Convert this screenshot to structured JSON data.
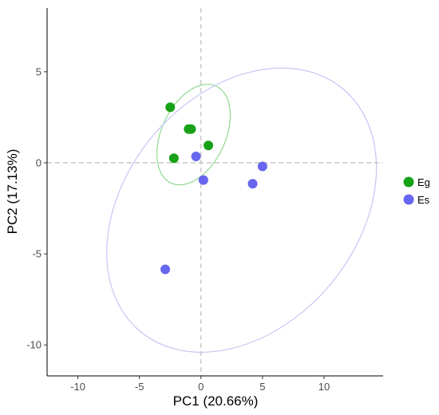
{
  "chart_data": {
    "type": "scatter",
    "xlabel": "PC1 (20.66%)",
    "ylabel": "PC2 (17.13%)",
    "xlim": [
      -12.5,
      14.8
    ],
    "ylim": [
      -11.7,
      8.5
    ],
    "x_ticks": [
      -10,
      -5,
      0,
      5,
      10
    ],
    "y_ticks": [
      -10,
      -5,
      0,
      5
    ],
    "grid": false,
    "reference_lines": {
      "x": 0,
      "y": 0,
      "style": "dashed"
    },
    "legend_position": "right",
    "series": [
      {
        "name": "Eg",
        "color": "#17a117",
        "points": [
          {
            "x": -2.5,
            "y": 3.05
          },
          {
            "x": -1.0,
            "y": 1.85
          },
          {
            "x": -0.8,
            "y": 1.85
          },
          {
            "x": 0.6,
            "y": 0.95
          },
          {
            "x": -2.2,
            "y": 0.25
          }
        ],
        "ellipse": {
          "center": [
            -0.6,
            1.55
          ],
          "color": "#90d990"
        }
      },
      {
        "name": "Es",
        "color": "#6666ee",
        "points": [
          {
            "x": -0.4,
            "y": 0.35
          },
          {
            "x": 0.2,
            "y": -0.95
          },
          {
            "x": 5.0,
            "y": -0.2
          },
          {
            "x": 4.2,
            "y": -1.15
          },
          {
            "x": -2.9,
            "y": -5.85
          }
        ],
        "ellipse": {
          "center": [
            3.3,
            -2.6
          ],
          "color": "#c6c6f4"
        }
      }
    ]
  }
}
